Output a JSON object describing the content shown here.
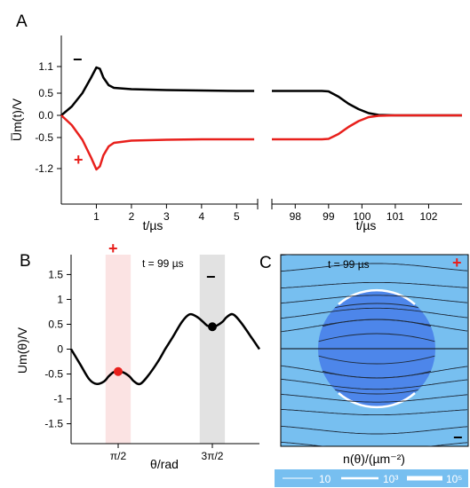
{
  "panels": {
    "a": "A",
    "b": "B",
    "c": "C"
  },
  "colors": {
    "black": "#000000",
    "red": "#e8201c",
    "red_band": "#fbe3e3",
    "gray_band": "#e2e2e2",
    "field_bg": "#77bff0",
    "sphere": "#4d86ea",
    "legend_bg": "#77bff0"
  },
  "chart_data": [
    {
      "panel": "A",
      "type": "line",
      "ylabel": "U̅m(t)/V",
      "xlabel_left": "t/µs",
      "xlabel_right": "t/µs",
      "yticks": [
        "1.1",
        "0.5",
        "0.0",
        "-0.5",
        "-1.2"
      ],
      "ytick_values": [
        1.1,
        0.5,
        0.0,
        -0.5,
        -1.2
      ],
      "xticks_left": [
        "1",
        "2",
        "3",
        "4",
        "5"
      ],
      "xticks_right": [
        "98",
        "99",
        "100",
        "101",
        "102"
      ],
      "xlim_left": [
        0,
        5.6
      ],
      "xlim_right": [
        97.3,
        103
      ],
      "ylim": [
        -2.0,
        1.8
      ],
      "signs": {
        "minus": "−",
        "plus": "+"
      },
      "series": [
        {
          "color": "black",
          "left": {
            "x": [
              0,
              0.3,
              0.6,
              0.85,
              1.0,
              1.1,
              1.2,
              1.35,
              1.5,
              2,
              3,
              4,
              5,
              5.5
            ],
            "y": [
              0.0,
              0.2,
              0.5,
              0.85,
              1.08,
              1.05,
              0.85,
              0.68,
              0.62,
              0.59,
              0.57,
              0.56,
              0.55,
              0.55
            ]
          },
          "right": {
            "x": [
              97.3,
              98,
              98.8,
              99.0,
              99.3,
              99.6,
              99.9,
              100.2,
              100.5,
              101,
              102,
              103
            ],
            "y": [
              0.55,
              0.55,
              0.55,
              0.54,
              0.42,
              0.26,
              0.14,
              0.05,
              0.01,
              0.0,
              0.0,
              0.0
            ]
          }
        },
        {
          "color": "red",
          "left": {
            "x": [
              0,
              0.3,
              0.6,
              0.85,
              1.0,
              1.1,
              1.2,
              1.35,
              1.5,
              2,
              3,
              4,
              5,
              5.5
            ],
            "y": [
              0.0,
              -0.22,
              -0.55,
              -0.95,
              -1.22,
              -1.15,
              -0.9,
              -0.7,
              -0.62,
              -0.57,
              -0.55,
              -0.54,
              -0.54,
              -0.54
            ]
          },
          "right": {
            "x": [
              97.3,
              98,
              98.8,
              99.0,
              99.3,
              99.6,
              99.9,
              100.2,
              100.5,
              101,
              102,
              103
            ],
            "y": [
              -0.54,
              -0.54,
              -0.54,
              -0.53,
              -0.42,
              -0.26,
              -0.13,
              -0.04,
              -0.01,
              0.0,
              0.0,
              0.0
            ]
          }
        }
      ]
    },
    {
      "panel": "B",
      "type": "line",
      "ylabel": "Um(θ)/V",
      "xlabel": "θ/rad",
      "annotation": "t = 99 µs",
      "yticks": [
        "1.5",
        "1",
        "0.5",
        "0",
        "-0.5",
        "-1",
        "-1.5"
      ],
      "ytick_values": [
        1.5,
        1,
        0.5,
        0,
        -0.5,
        -1,
        -1.5
      ],
      "xticks": [
        "π/2",
        "3π/2"
      ],
      "xtick_values": [
        1.5708,
        4.7124
      ],
      "xlim": [
        0,
        6.2832
      ],
      "ylim": [
        -1.9,
        1.9
      ],
      "bands": [
        {
          "from": 1.15,
          "to": 1.99,
          "color": "red_band"
        },
        {
          "from": 4.29,
          "to": 5.13,
          "color": "gray_band"
        }
      ],
      "signs": {
        "plus": "+",
        "minus": "−"
      },
      "series": [
        {
          "color": "black",
          "x": [
            0,
            0.3,
            0.6,
            0.85,
            1.1,
            1.25,
            1.4,
            1.55,
            1.75,
            1.95,
            2.1,
            2.3,
            2.55,
            2.9,
            3.14,
            3.4,
            3.7,
            3.95,
            4.2,
            4.4,
            4.55,
            4.7,
            4.85,
            5.05,
            5.2,
            5.4,
            5.65,
            6.0,
            6.2832
          ],
          "y": [
            0.0,
            -0.3,
            -0.6,
            -0.7,
            -0.65,
            -0.55,
            -0.47,
            -0.45,
            -0.47,
            -0.55,
            -0.65,
            -0.7,
            -0.55,
            -0.25,
            0.0,
            0.25,
            0.55,
            0.7,
            0.65,
            0.55,
            0.47,
            0.45,
            0.47,
            0.55,
            0.65,
            0.7,
            0.55,
            0.25,
            0.0
          ]
        }
      ],
      "markers": [
        {
          "x": 1.5708,
          "y": -0.45,
          "color": "red"
        },
        {
          "x": 4.7124,
          "y": 0.45,
          "color": "black"
        }
      ]
    },
    {
      "panel": "C",
      "type": "field-lines",
      "annotation": "t = 99 µs",
      "xlabel": "n(θ)/(µm⁻²)",
      "signs": {
        "plus": "+",
        "minus": "−"
      },
      "legend": [
        "10",
        "10³",
        "10⁵"
      ]
    }
  ]
}
